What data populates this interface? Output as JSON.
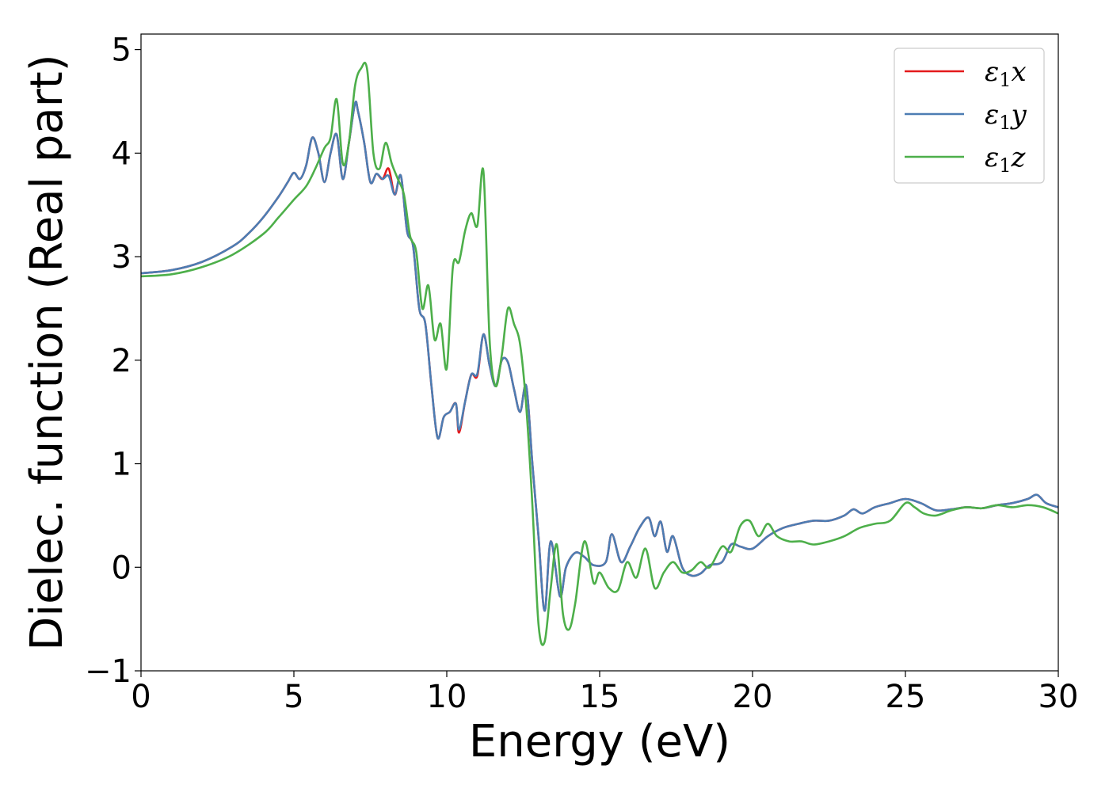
{
  "chart_data": {
    "type": "line",
    "xlabel": "Energy (eV)",
    "ylabel": "Dielec. function (Real part)",
    "xlim": [
      0,
      30
    ],
    "ylim": [
      -1,
      5.15
    ],
    "xticks": [
      0,
      5,
      10,
      15,
      20,
      25,
      30
    ],
    "yticks": [
      -1,
      0,
      1,
      2,
      3,
      4,
      5
    ],
    "xtick_labels": [
      "0",
      "5",
      "10",
      "15",
      "20",
      "25",
      "30"
    ],
    "ytick_labels": [
      "−1",
      "0",
      "1",
      "2",
      "3",
      "4",
      "5"
    ],
    "grid": false,
    "legend_position": "top-right",
    "series": [
      {
        "name": "ε1x",
        "legend_label": {
          "base": "ε",
          "sub": "1",
          "axis": "x"
        },
        "color": "#e41a1c",
        "x": [
          0,
          1,
          2,
          3,
          3.5,
          4,
          4.5,
          4.8,
          5.0,
          5.2,
          5.4,
          5.6,
          5.8,
          6.0,
          6.2,
          6.4,
          6.6,
          6.8,
          7.0,
          7.1,
          7.3,
          7.5,
          7.7,
          7.9,
          8.1,
          8.3,
          8.5,
          8.7,
          8.9,
          9.1,
          9.3,
          9.5,
          9.7,
          9.9,
          10.1,
          10.3,
          10.4,
          10.6,
          10.8,
          11.0,
          11.2,
          11.4,
          11.6,
          11.8,
          12.0,
          12.2,
          12.4,
          12.6,
          12.8,
          13.0,
          13.2,
          13.4,
          13.7,
          13.9,
          14.2,
          14.5,
          14.8,
          15.2,
          15.4,
          15.7,
          16.0,
          16.3,
          16.6,
          16.8,
          17.0,
          17.2,
          17.4,
          17.7,
          18.0,
          18.3,
          18.6,
          19.0,
          19.3,
          19.6,
          20.0,
          20.5,
          21.0,
          21.5,
          22.0,
          22.5,
          23.0,
          23.3,
          23.6,
          24.0,
          24.5,
          25.0,
          25.5,
          26.0,
          26.5,
          27.0,
          27.5,
          28.0,
          28.5,
          29.0,
          29.3,
          29.6,
          30.0
        ],
        "y": [
          2.84,
          2.87,
          2.95,
          3.1,
          3.22,
          3.38,
          3.58,
          3.72,
          3.81,
          3.75,
          3.88,
          4.15,
          4.0,
          3.72,
          4.0,
          4.18,
          3.75,
          4.1,
          4.48,
          4.4,
          4.1,
          3.72,
          3.8,
          3.75,
          3.85,
          3.6,
          3.78,
          3.25,
          3.1,
          2.5,
          2.35,
          1.75,
          1.25,
          1.45,
          1.5,
          1.58,
          1.3,
          1.6,
          1.86,
          1.85,
          2.25,
          1.95,
          1.75,
          2.0,
          1.98,
          1.72,
          1.5,
          1.75,
          1.0,
          0.3,
          -0.42,
          0.25,
          -0.28,
          0.0,
          0.14,
          0.1,
          0.02,
          0.05,
          0.32,
          0.05,
          0.2,
          0.38,
          0.48,
          0.3,
          0.44,
          0.15,
          0.3,
          0.0,
          -0.08,
          -0.06,
          0.02,
          0.05,
          0.22,
          0.2,
          0.18,
          0.3,
          0.38,
          0.42,
          0.45,
          0.45,
          0.5,
          0.56,
          0.52,
          0.58,
          0.62,
          0.66,
          0.62,
          0.55,
          0.56,
          0.58,
          0.57,
          0.6,
          0.62,
          0.66,
          0.7,
          0.62,
          0.58
        ]
      },
      {
        "name": "ε1y",
        "legend_label": {
          "base": "ε",
          "sub": "1",
          "axis": "y"
        },
        "color": "#4c7db3",
        "x": [
          0,
          1,
          2,
          3,
          3.5,
          4,
          4.5,
          4.8,
          5.0,
          5.2,
          5.4,
          5.6,
          5.8,
          6.0,
          6.2,
          6.4,
          6.6,
          6.8,
          7.0,
          7.1,
          7.3,
          7.5,
          7.7,
          7.9,
          8.1,
          8.3,
          8.5,
          8.7,
          8.9,
          9.1,
          9.3,
          9.5,
          9.7,
          9.9,
          10.1,
          10.3,
          10.4,
          10.6,
          10.8,
          11.0,
          11.2,
          11.4,
          11.6,
          11.8,
          12.0,
          12.2,
          12.4,
          12.6,
          12.8,
          13.0,
          13.2,
          13.4,
          13.7,
          13.9,
          14.2,
          14.5,
          14.8,
          15.2,
          15.4,
          15.7,
          16.0,
          16.3,
          16.6,
          16.8,
          17.0,
          17.2,
          17.4,
          17.7,
          18.0,
          18.3,
          18.6,
          19.0,
          19.3,
          19.6,
          20.0,
          20.5,
          21.0,
          21.5,
          22.0,
          22.5,
          23.0,
          23.3,
          23.6,
          24.0,
          24.5,
          25.0,
          25.5,
          26.0,
          26.5,
          27.0,
          27.5,
          28.0,
          28.5,
          29.0,
          29.3,
          29.6,
          30.0
        ],
        "y": [
          2.84,
          2.87,
          2.95,
          3.1,
          3.22,
          3.38,
          3.58,
          3.72,
          3.81,
          3.75,
          3.88,
          4.15,
          4.0,
          3.72,
          4.0,
          4.18,
          3.75,
          4.1,
          4.48,
          4.4,
          4.1,
          3.72,
          3.8,
          3.75,
          3.78,
          3.6,
          3.78,
          3.25,
          3.1,
          2.5,
          2.35,
          1.75,
          1.25,
          1.45,
          1.5,
          1.58,
          1.33,
          1.6,
          1.86,
          1.87,
          2.25,
          1.95,
          1.75,
          2.0,
          1.98,
          1.72,
          1.5,
          1.75,
          1.0,
          0.3,
          -0.42,
          0.25,
          -0.28,
          0.0,
          0.14,
          0.1,
          0.02,
          0.05,
          0.32,
          0.05,
          0.2,
          0.38,
          0.48,
          0.3,
          0.44,
          0.15,
          0.3,
          0.0,
          -0.08,
          -0.06,
          0.02,
          0.05,
          0.22,
          0.2,
          0.18,
          0.3,
          0.38,
          0.42,
          0.45,
          0.45,
          0.5,
          0.56,
          0.52,
          0.58,
          0.62,
          0.66,
          0.62,
          0.55,
          0.56,
          0.58,
          0.57,
          0.6,
          0.62,
          0.66,
          0.7,
          0.62,
          0.58
        ]
      },
      {
        "name": "ε1z",
        "legend_label": {
          "base": "ε",
          "sub": "1",
          "axis": "z"
        },
        "color": "#4daf4a",
        "x": [
          0,
          1,
          2,
          3,
          4,
          4.5,
          5.0,
          5.4,
          5.7,
          6.0,
          6.2,
          6.4,
          6.6,
          6.8,
          7.0,
          7.2,
          7.4,
          7.6,
          7.8,
          8.0,
          8.2,
          8.4,
          8.6,
          8.8,
          9.0,
          9.2,
          9.4,
          9.6,
          9.8,
          10.0,
          10.2,
          10.4,
          10.6,
          10.8,
          11.0,
          11.2,
          11.4,
          11.6,
          11.8,
          12.0,
          12.2,
          12.4,
          12.6,
          12.8,
          13.0,
          13.2,
          13.4,
          13.6,
          13.8,
          14.0,
          14.2,
          14.5,
          14.8,
          15.0,
          15.3,
          15.6,
          15.9,
          16.2,
          16.5,
          16.8,
          17.1,
          17.4,
          17.7,
          18.0,
          18.3,
          18.6,
          19.0,
          19.3,
          19.6,
          19.9,
          20.2,
          20.5,
          20.8,
          21.2,
          21.6,
          22.0,
          22.5,
          23.0,
          23.5,
          24.0,
          24.5,
          25.0,
          25.3,
          25.6,
          26.0,
          26.5,
          27.0,
          27.5,
          28.0,
          28.5,
          29.0,
          29.5,
          30.0
        ],
        "y": [
          2.81,
          2.83,
          2.9,
          3.02,
          3.22,
          3.38,
          3.55,
          3.68,
          3.85,
          4.05,
          4.15,
          4.52,
          3.9,
          4.1,
          4.65,
          4.82,
          4.8,
          4.0,
          3.85,
          4.1,
          3.9,
          3.75,
          3.6,
          3.2,
          3.05,
          2.5,
          2.72,
          2.2,
          2.35,
          1.92,
          2.9,
          2.95,
          3.25,
          3.42,
          3.3,
          3.82,
          2.2,
          1.75,
          2.05,
          2.5,
          2.35,
          2.15,
          1.55,
          0.6,
          -0.55,
          -0.72,
          -0.2,
          0.22,
          -0.45,
          -0.6,
          -0.35,
          0.25,
          -0.15,
          -0.05,
          -0.2,
          -0.22,
          0.05,
          -0.1,
          0.18,
          -0.2,
          -0.05,
          0.05,
          -0.05,
          -0.03,
          0.05,
          0.0,
          0.2,
          0.15,
          0.4,
          0.45,
          0.3,
          0.42,
          0.3,
          0.25,
          0.25,
          0.22,
          0.25,
          0.3,
          0.38,
          0.42,
          0.45,
          0.62,
          0.58,
          0.52,
          0.5,
          0.55,
          0.58,
          0.57,
          0.6,
          0.58,
          0.6,
          0.58,
          0.52
        ]
      }
    ]
  }
}
